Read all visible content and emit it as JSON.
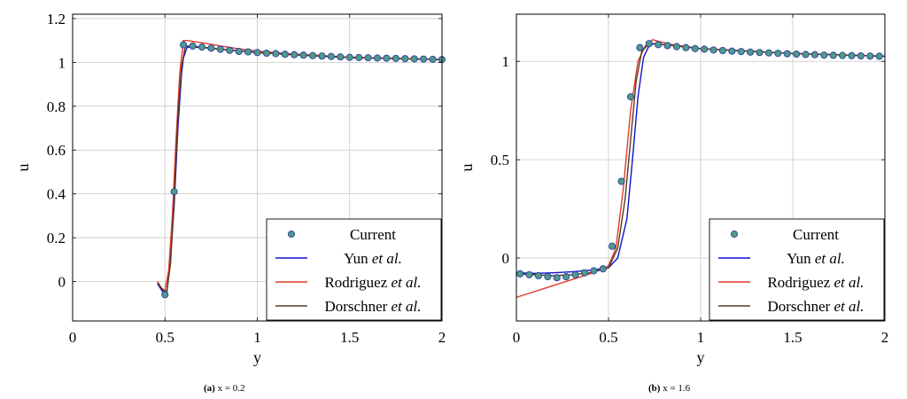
{
  "chart_data": [
    {
      "type": "line",
      "subfigure_label": "(a)",
      "caption": "x = 0.2",
      "xlabel": "y",
      "ylabel": "u",
      "xlim": [
        0,
        2
      ],
      "ylim": [
        -0.18,
        1.22
      ],
      "xticks": [
        0,
        0.5,
        1,
        1.5,
        2
      ],
      "xtick_labels": [
        "0",
        "0.5",
        "1",
        "1.5",
        "2"
      ],
      "yticks": [
        0,
        0.2,
        0.4,
        0.6,
        0.8,
        1,
        1.2
      ],
      "ytick_labels": [
        "0",
        "0.2",
        "0.4",
        "0.6",
        "0.8",
        "1",
        "1.2"
      ],
      "grid": true,
      "legend_position": "bottom-right",
      "series": [
        {
          "name": "Current",
          "style": "markers",
          "color": "#4f9a8c",
          "edge": "#2b3f9e",
          "x": [
            0.5,
            0.55,
            0.6,
            0.65,
            0.7,
            0.75,
            0.8,
            0.85,
            0.9,
            0.95,
            1.0,
            1.05,
            1.1,
            1.15,
            1.2,
            1.25,
            1.3,
            1.35,
            1.4,
            1.45,
            1.5,
            1.55,
            1.6,
            1.65,
            1.7,
            1.75,
            1.8,
            1.85,
            1.9,
            1.95,
            2.0
          ],
          "y": [
            -0.06,
            0.41,
            1.08,
            1.075,
            1.07,
            1.065,
            1.06,
            1.055,
            1.05,
            1.048,
            1.045,
            1.042,
            1.04,
            1.037,
            1.035,
            1.033,
            1.031,
            1.029,
            1.027,
            1.025,
            1.023,
            1.022,
            1.021,
            1.02,
            1.019,
            1.018,
            1.017,
            1.016,
            1.015,
            1.014,
            1.013
          ]
        },
        {
          "name": "Yun et al.",
          "name_main": "Yun ",
          "name_italic": "et al.",
          "style": "line",
          "color": "#1010d0",
          "x": [
            0.46,
            0.49,
            0.51,
            0.53,
            0.55,
            0.57,
            0.59,
            0.6,
            0.62,
            0.7,
            0.8,
            1.0,
            1.2,
            1.5,
            2.0
          ],
          "y": [
            -0.01,
            -0.05,
            -0.05,
            0.1,
            0.35,
            0.7,
            0.95,
            1.02,
            1.07,
            1.068,
            1.06,
            1.045,
            1.035,
            1.022,
            1.013
          ]
        },
        {
          "name": "Rodriguez et al.",
          "name_main": "Rodriguez ",
          "name_italic": "et al.",
          "style": "line",
          "color": "#e03a28",
          "x": [
            0.46,
            0.48,
            0.5,
            0.52,
            0.54,
            0.56,
            0.58,
            0.6,
            0.62,
            0.7,
            0.8,
            0.9,
            1.0,
            1.2,
            1.5,
            2.0
          ],
          "y": [
            0.0,
            -0.03,
            -0.04,
            0.05,
            0.3,
            0.65,
            0.95,
            1.1,
            1.1,
            1.09,
            1.075,
            1.062,
            1.052,
            1.038,
            1.024,
            1.013
          ]
        },
        {
          "name": "Dorschner et al.",
          "name_main": "Dorschner ",
          "name_italic": "et al.",
          "style": "line",
          "color": "#5a3a1e",
          "x": [
            0.46,
            0.49,
            0.51,
            0.53,
            0.55,
            0.57,
            0.59,
            0.61,
            0.7,
            0.8,
            1.0,
            1.2,
            1.5,
            2.0
          ],
          "y": [
            -0.005,
            -0.04,
            -0.045,
            0.08,
            0.38,
            0.75,
            0.98,
            1.075,
            1.07,
            1.06,
            1.045,
            1.034,
            1.022,
            1.013
          ]
        }
      ]
    },
    {
      "type": "line",
      "subfigure_label": "(b)",
      "caption": "x = 1.6",
      "xlabel": "y",
      "ylabel": "u",
      "xlim": [
        0,
        2
      ],
      "ylim": [
        -0.32,
        1.24
      ],
      "xticks": [
        0,
        0.5,
        1,
        1.5,
        2
      ],
      "xtick_labels": [
        "0",
        "0.5",
        "1",
        "1.5",
        "2"
      ],
      "yticks": [
        0,
        0.5,
        1
      ],
      "ytick_labels": [
        "0",
        "0.5",
        "1"
      ],
      "grid": true,
      "legend_position": "bottom-right",
      "series": [
        {
          "name": "Current",
          "style": "markers",
          "color": "#4f9a8c",
          "edge": "#2b3f9e",
          "x": [
            0.02,
            0.07,
            0.12,
            0.17,
            0.22,
            0.27,
            0.32,
            0.37,
            0.42,
            0.47,
            0.52,
            0.57,
            0.62,
            0.67,
            0.72,
            0.77,
            0.82,
            0.87,
            0.92,
            0.97,
            1.02,
            1.07,
            1.12,
            1.17,
            1.22,
            1.27,
            1.32,
            1.37,
            1.42,
            1.47,
            1.52,
            1.57,
            1.62,
            1.67,
            1.72,
            1.77,
            1.82,
            1.87,
            1.92,
            1.97
          ],
          "y": [
            -0.08,
            -0.085,
            -0.09,
            -0.095,
            -0.1,
            -0.095,
            -0.085,
            -0.075,
            -0.065,
            -0.055,
            0.06,
            0.39,
            0.82,
            1.07,
            1.09,
            1.085,
            1.08,
            1.075,
            1.07,
            1.065,
            1.062,
            1.058,
            1.055,
            1.052,
            1.05,
            1.047,
            1.045,
            1.043,
            1.041,
            1.039,
            1.037,
            1.035,
            1.034,
            1.032,
            1.031,
            1.03,
            1.029,
            1.028,
            1.027,
            1.026
          ]
        },
        {
          "name": "Yun et al.",
          "name_main": "Yun ",
          "name_italic": "et al.",
          "style": "line",
          "color": "#1010d0",
          "x": [
            0.0,
            0.1,
            0.2,
            0.3,
            0.4,
            0.5,
            0.55,
            0.6,
            0.63,
            0.66,
            0.69,
            0.72,
            0.75,
            0.8,
            1.0,
            1.5,
            2.0
          ],
          "y": [
            -0.075,
            -0.078,
            -0.075,
            -0.07,
            -0.062,
            -0.05,
            0.0,
            0.2,
            0.5,
            0.82,
            1.02,
            1.08,
            1.09,
            1.085,
            1.065,
            1.04,
            1.026
          ]
        },
        {
          "name": "Rodriguez et al.",
          "name_main": "Rodriguez ",
          "name_italic": "et al.",
          "style": "line",
          "color": "#e03a28",
          "x": [
            0.0,
            0.1,
            0.2,
            0.3,
            0.4,
            0.5,
            0.54,
            0.58,
            0.62,
            0.66,
            0.7,
            0.74,
            0.78,
            0.85,
            1.0,
            1.5,
            2.0
          ],
          "y": [
            -0.2,
            -0.17,
            -0.14,
            -0.11,
            -0.08,
            -0.04,
            0.05,
            0.35,
            0.75,
            1.0,
            1.08,
            1.11,
            1.1,
            1.085,
            1.065,
            1.04,
            1.026
          ]
        },
        {
          "name": "Dorschner et al.",
          "name_main": "Dorschner ",
          "name_italic": "et al.",
          "style": "line",
          "color": "#5a3a1e",
          "x": [
            0.0,
            0.1,
            0.2,
            0.3,
            0.4,
            0.5,
            0.55,
            0.59,
            0.62,
            0.65,
            0.68,
            0.72,
            0.76,
            0.85,
            1.0,
            1.5,
            2.0
          ],
          "y": [
            -0.08,
            -0.085,
            -0.09,
            -0.085,
            -0.075,
            -0.05,
            0.05,
            0.3,
            0.6,
            0.9,
            1.05,
            1.09,
            1.09,
            1.08,
            1.065,
            1.04,
            1.026
          ]
        }
      ]
    }
  ]
}
